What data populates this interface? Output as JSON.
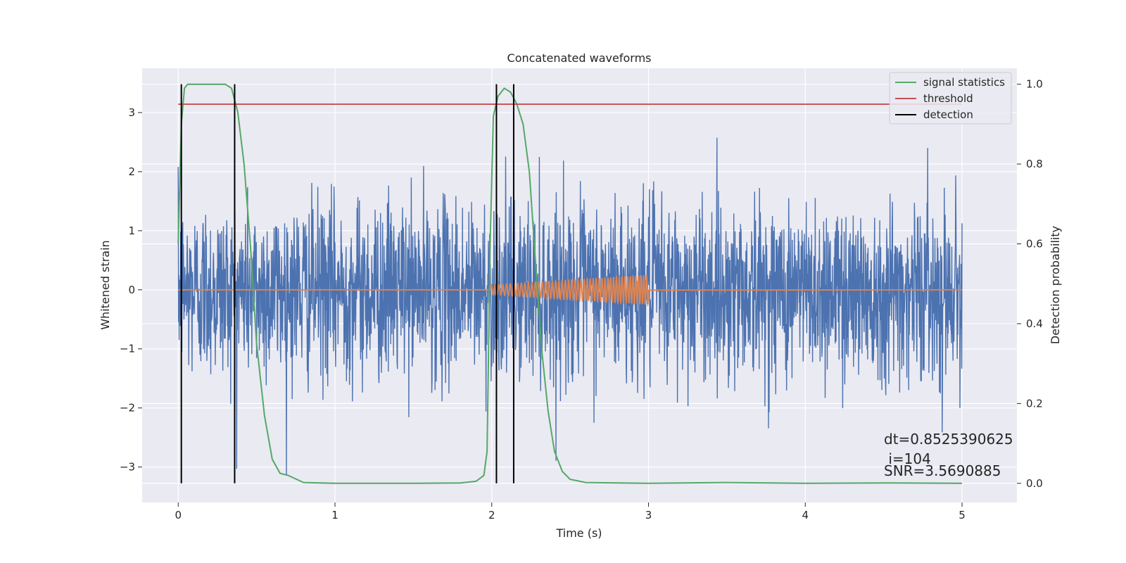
{
  "chart_data": {
    "type": "line",
    "title": "Concatenated waveforms",
    "xlabel": "Time (s)",
    "ylabel": "Whitened strain",
    "y2label": "Detection probability",
    "xlim": [
      -0.23,
      5.35
    ],
    "ylim": [
      -3.6,
      3.75
    ],
    "y2lim": [
      -0.048,
      1.04
    ],
    "xticks": [
      0,
      1,
      2,
      3,
      4,
      5
    ],
    "xtick_labels": [
      "0",
      "1",
      "2",
      "3",
      "4",
      "5"
    ],
    "yticks": [
      -3,
      -2,
      -1,
      0,
      1,
      2,
      3
    ],
    "ytick_labels": [
      "−3",
      "−2",
      "−1",
      "0",
      "1",
      "2",
      "3"
    ],
    "y2ticks": [
      0.0,
      0.2,
      0.4,
      0.6,
      0.8,
      1.0
    ],
    "y2tick_labels": [
      "0.0",
      "0.2",
      "0.4",
      "0.6",
      "0.8",
      "1.0"
    ],
    "grid": true,
    "legend_position": "top-right",
    "legend": [
      "signal statistics",
      "threshold",
      "detection"
    ],
    "colors": {
      "strain": "#4c72b0",
      "template": "#dd8452",
      "signal": "#55a868",
      "threshold": "#c44e52",
      "detection": "#000000",
      "axes_bg": "#eaeaf2",
      "grid": "#ffffff"
    },
    "series": [
      {
        "name": "signal statistics",
        "axis": "right",
        "x": [
          0,
          0.02,
          0.04,
          0.06,
          0.1,
          0.2,
          0.3,
          0.34,
          0.38,
          0.42,
          0.46,
          0.5,
          0.55,
          0.6,
          0.65,
          0.7,
          0.8,
          1.0,
          1.5,
          1.8,
          1.9,
          1.95,
          1.97,
          1.99,
          2.01,
          2.04,
          2.08,
          2.12,
          2.16,
          2.2,
          2.24,
          2.28,
          2.32,
          2.36,
          2.4,
          2.45,
          2.5,
          2.6,
          3.0,
          3.5,
          4.0,
          4.5,
          5.0
        ],
        "y": [
          0.6,
          0.9,
          0.99,
          1.0,
          1.0,
          1.0,
          1.0,
          0.99,
          0.93,
          0.8,
          0.6,
          0.35,
          0.17,
          0.06,
          0.025,
          0.02,
          0.002,
          0.0,
          0.0,
          0.001,
          0.005,
          0.02,
          0.08,
          0.6,
          0.92,
          0.97,
          0.99,
          0.98,
          0.95,
          0.9,
          0.78,
          0.55,
          0.33,
          0.18,
          0.08,
          0.03,
          0.01,
          0.002,
          0.0,
          0.002,
          0.0,
          0.001,
          0.0
        ]
      },
      {
        "name": "threshold",
        "axis": "right",
        "x": [
          0,
          5
        ],
        "y": [
          0.95,
          0.95
        ]
      }
    ],
    "detections": [
      0.02,
      0.36,
      2.03,
      2.14
    ],
    "strain": {
      "name": "",
      "axis": "left",
      "x_range": [
        0,
        5
      ],
      "amplitude_std": 0.75,
      "peak_max": 3.4,
      "peak_min": -3.6
    },
    "template": {
      "name": "",
      "axis": "left",
      "x_range": [
        1.99,
        3.0
      ],
      "amplitude_start": 0.08,
      "amplitude_end": 0.25
    },
    "annotations": [
      "dt=0.8525390625",
      " i=104",
      "SNR=3.5690885"
    ]
  }
}
